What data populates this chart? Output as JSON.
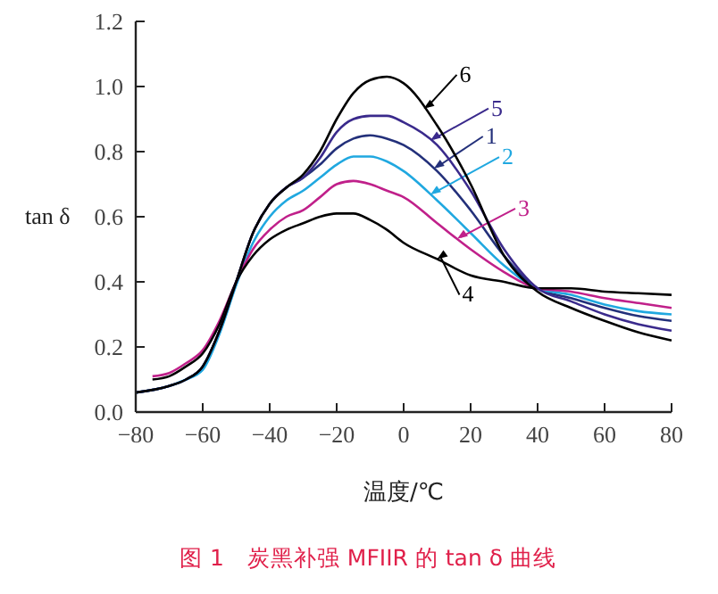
{
  "chart_data": {
    "type": "line",
    "title": "图 1　炭黑补强 MFIIR 的 tan δ 曲线",
    "xlabel": "温度/℃",
    "ylabel": "tan δ",
    "xlim": [
      -80,
      80
    ],
    "ylim": [
      0,
      1.2
    ],
    "xticks": [
      -80,
      -60,
      -40,
      -20,
      0,
      20,
      40,
      60,
      80
    ],
    "yticks": [
      {
        "value": 0,
        "label": "0.0"
      },
      0.2,
      0.4,
      0.6,
      0.8,
      {
        "value": 1,
        "label": "1.0"
      },
      1.2
    ],
    "grid": false,
    "legend": "right",
    "marker": "none",
    "line_style": "solid",
    "series": [
      {
        "name": "1",
        "color": "#23307a",
        "x": [
          -80,
          -70,
          -65,
          -60,
          -55,
          -50,
          -45,
          -40,
          -35,
          -30,
          -25,
          -20,
          -15,
          -10,
          -5,
          0,
          10,
          20,
          30,
          40,
          50,
          60,
          70,
          80
        ],
        "values": [
          0.06,
          0.08,
          0.1,
          0.14,
          0.25,
          0.4,
          0.55,
          0.64,
          0.69,
          0.72,
          0.76,
          0.81,
          0.84,
          0.85,
          0.84,
          0.82,
          0.74,
          0.62,
          0.48,
          0.38,
          0.35,
          0.32,
          0.295,
          0.28
        ]
      },
      {
        "name": "2",
        "color": "#20a8e0",
        "x": [
          -80,
          -70,
          -65,
          -60,
          -55,
          -50,
          -45,
          -40,
          -35,
          -30,
          -25,
          -20,
          -15,
          -10,
          -5,
          0,
          10,
          20,
          30,
          40,
          50,
          60,
          70,
          80
        ],
        "values": [
          0.06,
          0.08,
          0.1,
          0.13,
          0.24,
          0.39,
          0.52,
          0.6,
          0.65,
          0.68,
          0.72,
          0.76,
          0.785,
          0.785,
          0.77,
          0.74,
          0.65,
          0.55,
          0.45,
          0.38,
          0.36,
          0.33,
          0.31,
          0.3
        ]
      },
      {
        "name": "3",
        "color": "#c0208a",
        "x": [
          -75,
          -70,
          -65,
          -60,
          -55,
          -50,
          -45,
          -40,
          -35,
          -30,
          -25,
          -20,
          -15,
          -10,
          -5,
          0,
          10,
          20,
          30,
          40,
          50,
          60,
          70,
          80
        ],
        "values": [
          0.11,
          0.12,
          0.15,
          0.19,
          0.28,
          0.4,
          0.5,
          0.56,
          0.6,
          0.62,
          0.66,
          0.7,
          0.71,
          0.7,
          0.68,
          0.66,
          0.58,
          0.5,
          0.43,
          0.38,
          0.37,
          0.35,
          0.335,
          0.32
        ]
      },
      {
        "name": "4",
        "color": "#000000",
        "x": [
          -75,
          -70,
          -65,
          -60,
          -55,
          -50,
          -45,
          -40,
          -35,
          -30,
          -25,
          -20,
          -15,
          -10,
          -5,
          0,
          10,
          20,
          30,
          40,
          50,
          60,
          70,
          80
        ],
        "values": [
          0.1,
          0.11,
          0.14,
          0.18,
          0.27,
          0.4,
          0.48,
          0.53,
          0.56,
          0.58,
          0.6,
          0.61,
          0.61,
          0.59,
          0.56,
          0.52,
          0.47,
          0.42,
          0.4,
          0.38,
          0.38,
          0.37,
          0.365,
          0.36
        ]
      },
      {
        "name": "5",
        "color": "#3a2a8c",
        "x": [
          -80,
          -70,
          -65,
          -60,
          -55,
          -50,
          -45,
          -40,
          -35,
          -30,
          -25,
          -20,
          -15,
          -10,
          -5,
          0,
          10,
          20,
          30,
          40,
          50,
          60,
          70,
          80
        ],
        "values": [
          0.06,
          0.08,
          0.1,
          0.14,
          0.25,
          0.4,
          0.55,
          0.64,
          0.69,
          0.72,
          0.78,
          0.86,
          0.9,
          0.91,
          0.91,
          0.89,
          0.82,
          0.68,
          0.5,
          0.38,
          0.34,
          0.3,
          0.27,
          0.25
        ]
      },
      {
        "name": "6",
        "color": "#000000",
        "x": [
          -80,
          -70,
          -65,
          -60,
          -55,
          -50,
          -45,
          -40,
          -35,
          -30,
          -25,
          -20,
          -15,
          -10,
          -5,
          0,
          10,
          20,
          30,
          40,
          50,
          60,
          70,
          80
        ],
        "values": [
          0.06,
          0.08,
          0.1,
          0.14,
          0.25,
          0.4,
          0.55,
          0.64,
          0.69,
          0.73,
          0.8,
          0.9,
          0.98,
          1.02,
          1.03,
          1.01,
          0.88,
          0.7,
          0.48,
          0.37,
          0.32,
          0.28,
          0.245,
          0.22
        ]
      }
    ]
  }
}
